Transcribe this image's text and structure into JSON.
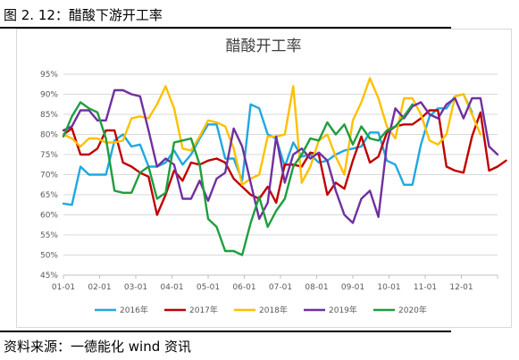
{
  "figure_title": "图 2. 12：醋酸下游开工率",
  "source_note": "资料来源：一德能化  wind 资讯",
  "chart_data": {
    "type": "line",
    "title": "醋酸开工率",
    "ylim": [
      45,
      95
    ],
    "y_ticks": [
      "45%",
      "50%",
      "55%",
      "60%",
      "65%",
      "70%",
      "75%",
      "80%",
      "85%",
      "90%",
      "95%"
    ],
    "x_ticks": [
      "01-01",
      "02-01",
      "03-01",
      "04-01",
      "05-01",
      "06-01",
      "07-01",
      "08-01",
      "09-01",
      "10-01",
      "11-01",
      "12-01"
    ],
    "grid": true,
    "legend_position": "bottom",
    "series": [
      {
        "name": "2016年",
        "color": "#1FA8E0",
        "values": [
          62.8,
          62.5,
          72,
          70,
          70,
          70,
          78.5,
          80,
          77,
          77.5,
          72,
          72,
          73,
          76,
          72.5,
          75,
          79,
          82.5,
          82.5,
          74,
          74,
          68.5,
          87.5,
          86.5,
          80,
          79,
          72,
          78,
          74.5,
          75,
          73,
          73.5,
          75,
          76,
          76.5,
          77,
          80.5,
          80.5,
          73.5,
          72.5,
          67.5,
          67.5,
          77.5,
          84.5,
          86.5,
          86.5,
          89.5,
          90,
          85.5
        ]
      },
      {
        "name": "2017年",
        "color": "#C00000",
        "values": [
          80,
          81.5,
          75,
          75,
          76.5,
          81,
          81,
          73,
          72,
          70.5,
          69.5,
          60,
          65,
          71,
          68.5,
          73,
          72.5,
          73.5,
          74,
          73,
          69,
          67,
          65,
          64,
          67,
          63,
          72.5,
          72.5,
          72,
          75.5,
          75,
          65,
          68,
          66.5,
          73.5,
          79.5,
          73,
          74.5,
          80.5,
          82,
          82.5,
          82.5,
          84,
          86,
          86,
          72,
          71,
          70.5,
          79.5,
          85.5,
          71,
          72,
          73.5
        ]
      },
      {
        "name": "2018年",
        "color": "#FFC000",
        "values": [
          80,
          79,
          77,
          79,
          79,
          78,
          78,
          78.5,
          84,
          84.5,
          84,
          87.5,
          92,
          86.5,
          76.5,
          76,
          79.5,
          83.5,
          83,
          82,
          76.5,
          67.5,
          69,
          70,
          79.5,
          79.5,
          80,
          92,
          68,
          72,
          78.5,
          80,
          74.5,
          70,
          83.5,
          88,
          94,
          89,
          82,
          79,
          89,
          89,
          85,
          78.5,
          77.5,
          80,
          89.5,
          90,
          85,
          80
        ]
      },
      {
        "name": "2019年",
        "color": "#7030A0",
        "values": [
          81,
          82,
          86,
          86,
          83.5,
          83.5,
          91,
          91,
          90,
          89.5,
          81,
          72,
          74,
          72.5,
          64,
          64,
          68.5,
          63.5,
          69,
          70.5,
          81.5,
          77,
          68,
          59,
          63,
          79.5,
          68,
          75,
          76.5,
          74,
          75.5,
          73.5,
          66,
          60,
          58,
          64,
          66,
          59.5,
          77.5,
          86.5,
          84,
          87,
          88,
          85,
          84,
          87.5,
          89,
          84,
          89,
          89,
          77,
          75
        ]
      },
      {
        "name": "2020年",
        "color": "#1E9E3E",
        "values": [
          79.5,
          84.5,
          88,
          86.5,
          85.5,
          79,
          66,
          65.5,
          65.5,
          70.5,
          72,
          64,
          65.5,
          78,
          78.5,
          79,
          72.5,
          59,
          57,
          51,
          51,
          50,
          58,
          64.5,
          57,
          61,
          64,
          72,
          75,
          79,
          78.5,
          83,
          80,
          82.5,
          77.5,
          82,
          79,
          78.5,
          81,
          82,
          84.5,
          87.5
        ]
      }
    ]
  }
}
